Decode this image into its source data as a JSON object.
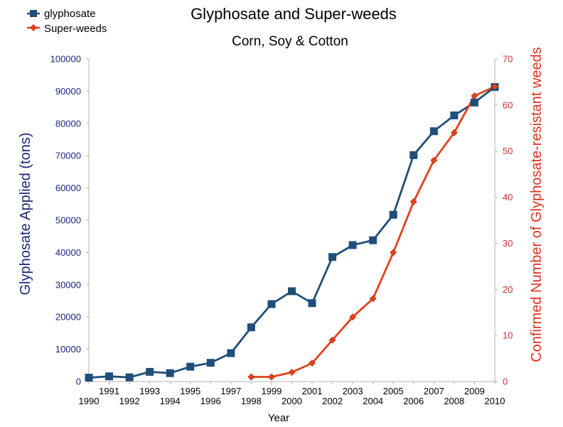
{
  "chart_data": {
    "type": "line",
    "title": "Glyphosate and Super-weeds",
    "subtitle": "Corn, Soy & Cotton",
    "xlabel": "Year",
    "ylabel_left": "Glyphosate Applied (tons)",
    "ylabel_right": "Confirmed Number of Glyphosate-resistant weeds",
    "ylim_left": [
      0,
      100000
    ],
    "ylim_right": [
      0,
      70
    ],
    "yticks_left": [
      "0",
      "10000",
      "20000",
      "30000",
      "40000",
      "50000",
      "60000",
      "70000",
      "80000",
      "90000",
      "100000"
    ],
    "yticks_right": [
      "0",
      "10",
      "20",
      "30",
      "40",
      "50",
      "60",
      "70"
    ],
    "xlim": [
      1990,
      2010
    ],
    "xticks": [
      "1990",
      "1991",
      "1992",
      "1993",
      "1994",
      "1995",
      "1996",
      "1997",
      "1998",
      "1999",
      "2000",
      "2001",
      "2002",
      "2003",
      "2004",
      "2005",
      "2006",
      "2007",
      "2008",
      "2009",
      "2010"
    ],
    "grid": false,
    "legend_position": "top-left",
    "series": [
      {
        "name": "glyphosate",
        "axis": "left",
        "color": "#1f4e79",
        "marker": "square",
        "x": [
          1990,
          1991,
          1992,
          1993,
          1994,
          1995,
          1996,
          1997,
          1998,
          1999,
          2000,
          2001,
          2002,
          2003,
          2004,
          2005,
          2006,
          2007,
          2008,
          2009,
          2010
        ],
        "values": [
          1200,
          1600,
          1300,
          3000,
          2600,
          4600,
          5800,
          8800,
          16800,
          24000,
          28000,
          24300,
          38600,
          42300,
          43800,
          51700,
          70200,
          77600,
          82500,
          86500,
          91300
        ]
      },
      {
        "name": "Super-weeds",
        "axis": "right",
        "color": "#e0421e",
        "marker": "diamond",
        "x": [
          1998,
          1999,
          2000,
          2001,
          2002,
          2003,
          2004,
          2005,
          2006,
          2007,
          2008,
          2009,
          2010
        ],
        "values": [
          1,
          1,
          2,
          4,
          9,
          14,
          18,
          28,
          39,
          48,
          54,
          62,
          64
        ]
      }
    ]
  }
}
